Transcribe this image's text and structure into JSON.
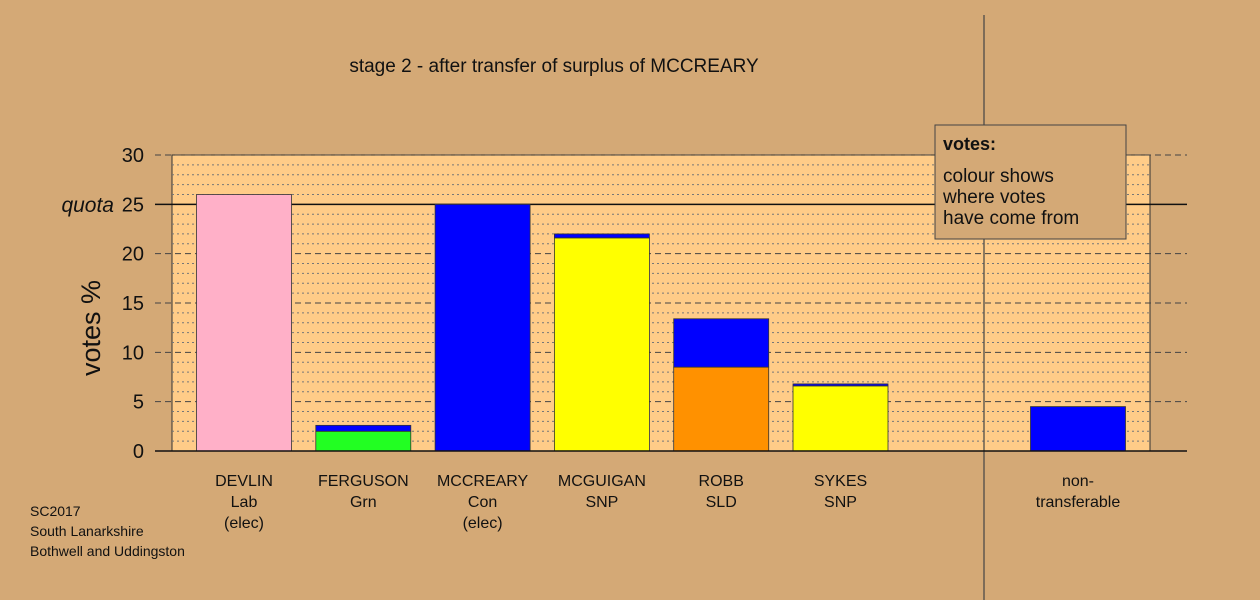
{
  "chart_data": {
    "type": "bar",
    "stacked": true,
    "title": "stage 2 - after transfer of surplus of MCCREARY",
    "ylabel": "votes %",
    "xlabel": "",
    "ylim": [
      0,
      30
    ],
    "yticks": [
      0,
      5,
      10,
      15,
      20,
      25,
      30
    ],
    "quota": {
      "value": 25,
      "label": "quota"
    },
    "grid": true,
    "candidates": [
      {
        "name": "DEVLIN",
        "party": "Lab",
        "status": "(elec)",
        "segments": [
          {
            "from": "DEVLIN",
            "value": 26.0,
            "color": "#ffb0c8"
          }
        ]
      },
      {
        "name": "FERGUSON",
        "party": "Grn",
        "status": "",
        "segments": [
          {
            "from": "FERGUSON",
            "value": 2.0,
            "color": "#22ff22"
          },
          {
            "from": "MCCREARY",
            "value": 0.6,
            "color": "#0000ff"
          }
        ]
      },
      {
        "name": "MCCREARY",
        "party": "Con",
        "status": "(elec)",
        "segments": [
          {
            "from": "MCCREARY",
            "value": 25.0,
            "color": "#0000ff"
          }
        ]
      },
      {
        "name": "MCGUIGAN",
        "party": "SNP",
        "status": "",
        "segments": [
          {
            "from": "MCGUIGAN",
            "value": 21.6,
            "color": "#ffff00"
          },
          {
            "from": "MCCREARY",
            "value": 0.4,
            "color": "#0000ff"
          }
        ]
      },
      {
        "name": "ROBB",
        "party": "SLD",
        "status": "",
        "segments": [
          {
            "from": "ROBB",
            "value": 8.5,
            "color": "#ff9100"
          },
          {
            "from": "MCCREARY",
            "value": 4.9,
            "color": "#0000ff"
          }
        ]
      },
      {
        "name": "SYKES",
        "party": "SNP",
        "status": "",
        "segments": [
          {
            "from": "SYKES",
            "value": 6.6,
            "color": "#ffff00"
          },
          {
            "from": "MCCREARY",
            "value": 0.2,
            "color": "#0000ff"
          }
        ]
      }
    ],
    "nontransferable": {
      "label_lines": [
        "non-",
        "transferable"
      ],
      "segments": [
        {
          "from": "MCCREARY",
          "value": 4.5,
          "color": "#0000ff"
        }
      ]
    },
    "legend": {
      "placement": "top-right",
      "title": "votes:",
      "lines": [
        "colour shows",
        "where votes",
        "have come from"
      ]
    },
    "colors": {
      "background": "#d4a976",
      "plot_background": "#ffcc88"
    }
  },
  "source": {
    "lines": [
      "SC2017",
      "South Lanarkshire",
      "Bothwell and Uddingston"
    ]
  }
}
